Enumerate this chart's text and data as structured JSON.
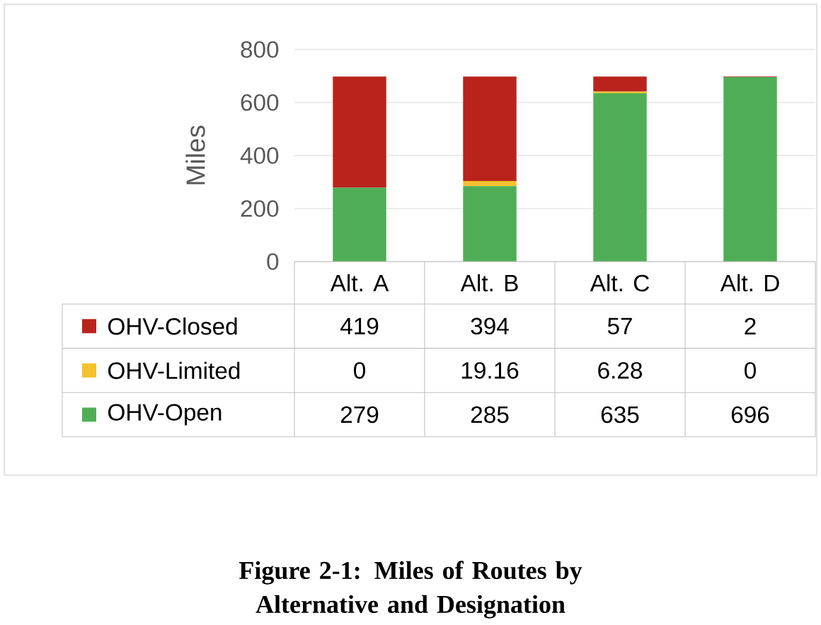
{
  "chart_data": {
    "type": "bar",
    "stacked": true,
    "title": "Figure 2-1: Miles of Routes by Alternative and Designation",
    "ylabel": "Miles",
    "categories": [
      "Alt. A",
      "Alt. B",
      "Alt. C",
      "Alt. D"
    ],
    "series": [
      {
        "name": "OHV-Open",
        "color": "#4fae55",
        "values": [
          279,
          285,
          635,
          696
        ]
      },
      {
        "name": "OHV-Limited",
        "color": "#f5c12e",
        "values": [
          0,
          19.16,
          6.28,
          0
        ]
      },
      {
        "name": "OHV-Closed",
        "color": "#b8241c",
        "values": [
          419,
          394,
          57,
          2
        ]
      }
    ],
    "ylim": [
      0,
      800
    ],
    "yticks": [
      0,
      200,
      400,
      600,
      800
    ],
    "grid": "y",
    "legend": "bottom",
    "data_labels": true
  }
}
